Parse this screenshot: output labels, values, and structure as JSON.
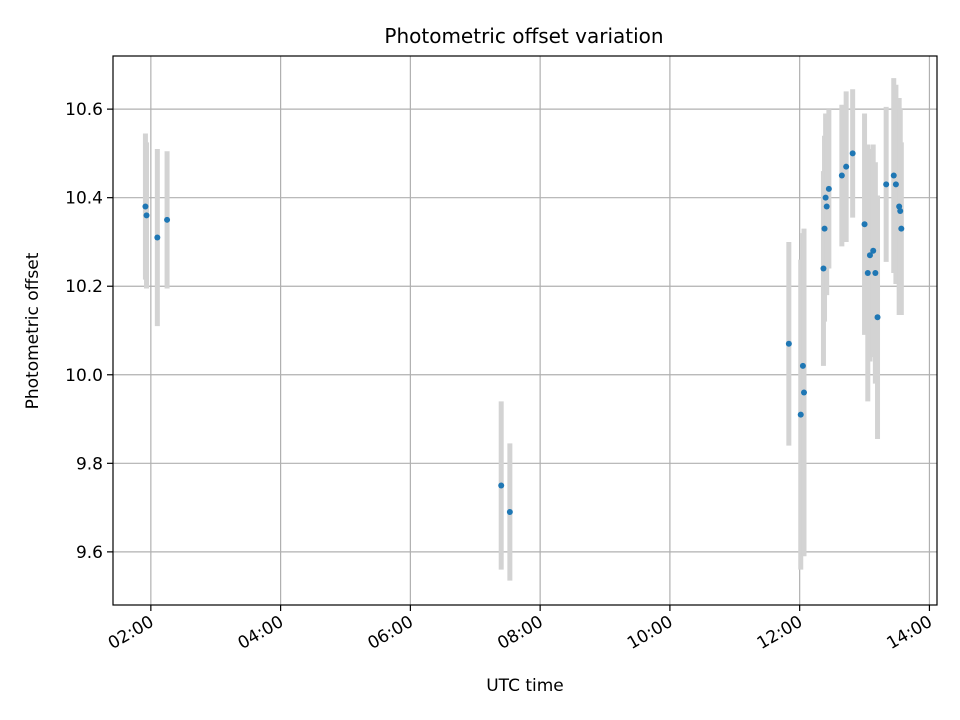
{
  "chart_data": {
    "type": "scatter",
    "title": "Photometric offset variation",
    "xlabel": "UTC time",
    "ylabel": "Photometric offset",
    "x_unit": "UTC time (HH:MM)",
    "xlim": [
      "01:25",
      "14:07"
    ],
    "ylim": [
      9.48,
      10.72
    ],
    "x_ticks": [
      "02:00",
      "04:00",
      "06:00",
      "08:00",
      "10:00",
      "12:00",
      "14:00"
    ],
    "y_ticks": [
      "9.6",
      "9.8",
      "10.0",
      "10.2",
      "10.4",
      "10.6"
    ],
    "grid": true,
    "colors": {
      "point": "#1f77b4",
      "errorbar": "#d3d3d3",
      "grid": "#b0b0b0"
    },
    "points": [
      {
        "x": "01:55",
        "y": 10.38,
        "yerr": 0.165
      },
      {
        "x": "01:56",
        "y": 10.36,
        "yerr": 0.165
      },
      {
        "x": "02:06",
        "y": 10.31,
        "yerr": 0.2
      },
      {
        "x": "02:15",
        "y": 10.35,
        "yerr": 0.155
      },
      {
        "x": "07:24",
        "y": 9.75,
        "yerr": 0.19
      },
      {
        "x": "07:32",
        "y": 9.69,
        "yerr": 0.155
      },
      {
        "x": "11:50",
        "y": 10.07,
        "yerr": 0.23
      },
      {
        "x": "12:01",
        "y": 9.91,
        "yerr": 0.35
      },
      {
        "x": "12:03",
        "y": 10.02,
        "yerr": 0.3
      },
      {
        "x": "12:04",
        "y": 9.96,
        "yerr": 0.37
      },
      {
        "x": "12:22",
        "y": 10.24,
        "yerr": 0.22
      },
      {
        "x": "12:23",
        "y": 10.33,
        "yerr": 0.21
      },
      {
        "x": "12:24",
        "y": 10.4,
        "yerr": 0.19
      },
      {
        "x": "12:25",
        "y": 10.38,
        "yerr": 0.2
      },
      {
        "x": "12:27",
        "y": 10.42,
        "yerr": 0.18
      },
      {
        "x": "12:39",
        "y": 10.45,
        "yerr": 0.16
      },
      {
        "x": "12:43",
        "y": 10.47,
        "yerr": 0.17
      },
      {
        "x": "12:49",
        "y": 10.5,
        "yerr": 0.145
      },
      {
        "x": "13:00",
        "y": 10.34,
        "yerr": 0.25
      },
      {
        "x": "13:03",
        "y": 10.23,
        "yerr": 0.29
      },
      {
        "x": "13:05",
        "y": 10.27,
        "yerr": 0.24
      },
      {
        "x": "13:08",
        "y": 10.28,
        "yerr": 0.24
      },
      {
        "x": "13:10",
        "y": 10.23,
        "yerr": 0.25
      },
      {
        "x": "13:12",
        "y": 10.13,
        "yerr": 0.275
      },
      {
        "x": "13:20",
        "y": 10.43,
        "yerr": 0.175
      },
      {
        "x": "13:27",
        "y": 10.45,
        "yerr": 0.22
      },
      {
        "x": "13:29",
        "y": 10.43,
        "yerr": 0.225
      },
      {
        "x": "13:32",
        "y": 10.38,
        "yerr": 0.245
      },
      {
        "x": "13:33",
        "y": 10.37,
        "yerr": 0.23
      },
      {
        "x": "13:34",
        "y": 10.33,
        "yerr": 0.195
      }
    ]
  }
}
